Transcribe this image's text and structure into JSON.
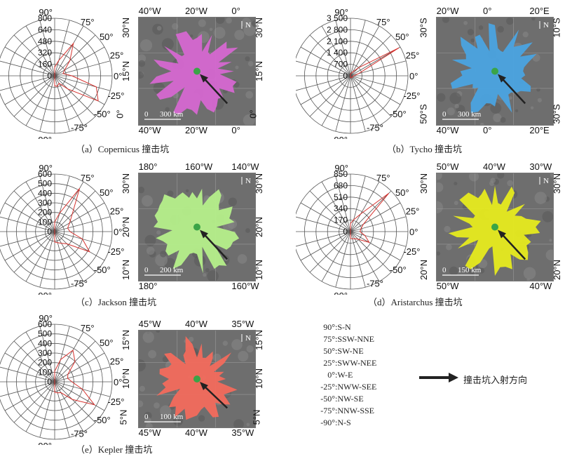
{
  "panels": [
    {
      "id": "a",
      "caption": "（a）Copernicus 撞击坑",
      "rose": {
        "max": 800,
        "radial_ticks": [
          "800",
          "640",
          "480",
          "320",
          "160",
          "0"
        ],
        "values": [
          120,
          220,
          520,
          300,
          160,
          120,
          240,
          600,
          700,
          260,
          120,
          150,
          140
        ]
      },
      "map": {
        "top": [
          "40°W",
          "20°W",
          "0°"
        ],
        "bottom": [
          "40°W",
          "20°W",
          "0°"
        ],
        "left": [
          "30°N",
          "15°N",
          "0°"
        ],
        "right": [
          "30°N",
          "15°N",
          "0°"
        ],
        "scale": "300 km",
        "north": "N",
        "color": "#d567d0"
      }
    },
    {
      "id": "b",
      "caption": "（b）Tycho 撞击坑",
      "rose": {
        "max": 3500,
        "radial_ticks": [
          "3 500",
          "2 800",
          "2 100",
          "1 400",
          "700",
          "0"
        ],
        "values": [
          120,
          160,
          260,
          700,
          3400,
          500,
          200,
          150,
          120,
          140,
          130,
          120,
          110
        ]
      },
      "map": {
        "top": [
          "20°W",
          "0°",
          "20°E"
        ],
        "bottom": [
          "40°W",
          "0°",
          "20°E"
        ],
        "left": [
          "30°S",
          "50°S"
        ],
        "right": [
          "10°S",
          "30°S"
        ],
        "scale": "300 km",
        "north": "N",
        "color": "#4aa3e0"
      }
    },
    {
      "id": "c",
      "caption": "（c）Jackson 撞击坑",
      "rose": {
        "max": 600,
        "radial_ticks": [
          "600",
          "500",
          "400",
          "300",
          "200",
          "100",
          "0"
        ],
        "values": [
          100,
          200,
          520,
          260,
          180,
          140,
          160,
          300,
          420,
          180,
          140,
          120,
          110
        ]
      },
      "map": {
        "top": [
          "180°",
          "160°W",
          "140°W"
        ],
        "bottom": [
          "180°",
          "160°W"
        ],
        "left": [
          "30°N",
          "20°N",
          "10°N"
        ],
        "right": [
          "30°N",
          "20°N",
          "10°N"
        ],
        "scale": "200 km",
        "north": "N",
        "color": "#b5ef8a"
      }
    },
    {
      "id": "d",
      "caption": "（d）Aristarchus 撞击坑",
      "rose": {
        "max": 850,
        "radial_ticks": [
          "850",
          "680",
          "510",
          "340",
          "170",
          "0"
        ],
        "values": [
          120,
          180,
          300,
          800,
          220,
          160,
          140,
          220,
          320,
          160,
          120,
          110,
          100
        ]
      },
      "map": {
        "top": [
          "50°W",
          "40°W",
          "30°W"
        ],
        "bottom": [
          "50°W",
          "40°W"
        ],
        "left": [
          "30°N",
          "20°N"
        ],
        "right": [
          "30°N",
          "20°N"
        ],
        "scale": "150 km",
        "north": "N",
        "color": "#e6ea1e"
      }
    },
    {
      "id": "e",
      "caption": "（e）Kepler 撞击坑",
      "rose": {
        "max": 600,
        "radial_ticks": [
          "600",
          "500",
          "400",
          "300",
          "200",
          "100",
          "0"
        ],
        "values": [
          110,
          240,
          380,
          300,
          160,
          140,
          180,
          300,
          480,
          260,
          130,
          120,
          110
        ]
      },
      "map": {
        "top": [
          "45°W",
          "40°W",
          "35°W"
        ],
        "bottom": [
          "45°W",
          "40°W",
          "35°W"
        ],
        "left": [
          "15°N",
          "10°N",
          "5°N"
        ],
        "right": [
          "15°N",
          "10°N",
          "5°N"
        ],
        "scale": "100 km",
        "north": "N",
        "color": "#f26a5c"
      }
    }
  ],
  "angle_labels": [
    "90°",
    "75°",
    "50°",
    "25°",
    "0°",
    "-25°",
    "-50°",
    "-75°",
    "-90°"
  ],
  "legend": {
    "rows": [
      {
        "k": "90°",
        "v": ":S-N"
      },
      {
        "k": "75°",
        "v": ":SSW-NNE"
      },
      {
        "k": "50°",
        "v": ":SW-NE"
      },
      {
        "k": "25°",
        "v": ":SWW-NEE"
      },
      {
        "k": "0°",
        "v": ":W-E"
      },
      {
        "k": "-25°",
        "v": ":NWW-SEE"
      },
      {
        "k": "-50°",
        "v": ":NW-SE"
      },
      {
        "k": "-75°",
        "v": ":NNW-SSE"
      },
      {
        "k": "-90°",
        "v": ":N-S"
      }
    ],
    "arrow_label": "撞击坑入射方向"
  }
}
